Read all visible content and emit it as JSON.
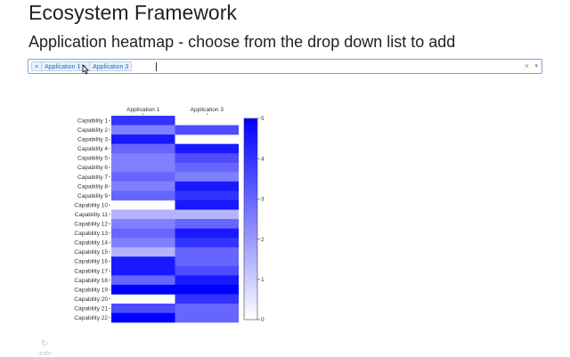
{
  "page": {
    "title": "Ecosystem Framework",
    "subtitle": "Application heatmap - choose from the drop down list to add"
  },
  "dropdown": {
    "selected": [
      {
        "remove": "×",
        "label": "Application 1"
      },
      {
        "remove": "×",
        "label": "Application 3"
      }
    ],
    "clear_icon": "×",
    "arrow_icon": "▾"
  },
  "colors": {
    "accent": "#7aa7d8",
    "scale_low": "#ffffff",
    "scale_high": "#0000ff"
  },
  "chart_data": {
    "type": "heatmap",
    "x": [
      "Application 1",
      "Application 3"
    ],
    "y": [
      "Capability 1",
      "Capability 2",
      "Capability 3",
      "Capability 4",
      "Capability 5",
      "Capability 6",
      "Capability 7",
      "Capability 8",
      "Capability 9",
      "Capability 10",
      "Capability 11",
      "Capability 12",
      "Capability 13",
      "Capability 14",
      "Capability 15",
      "Capability 16",
      "Capability 17",
      "Capability 18",
      "Capability 19",
      "Capability 20",
      "Capability 21",
      "Capability 22"
    ],
    "z": [
      [
        4,
        null
      ],
      [
        2.5,
        3.5
      ],
      [
        4.5,
        null
      ],
      [
        3,
        4.5
      ],
      [
        2.5,
        3.5
      ],
      [
        2.5,
        3
      ],
      [
        3,
        2.5
      ],
      [
        2.5,
        4.5
      ],
      [
        3,
        4
      ],
      [
        null,
        4.5
      ],
      [
        1.5,
        1.5
      ],
      [
        2.5,
        3
      ],
      [
        3,
        4.5
      ],
      [
        2.5,
        4
      ],
      [
        1.5,
        3
      ],
      [
        4.5,
        3
      ],
      [
        4.5,
        3.5
      ],
      [
        3,
        4.5
      ],
      [
        5,
        5
      ],
      [
        null,
        4
      ],
      [
        3.5,
        3
      ],
      [
        5,
        3
      ]
    ],
    "colorbar": {
      "range": [
        0,
        5
      ],
      "ticks": [
        "0",
        "1",
        "2",
        "3",
        "4",
        "5"
      ]
    }
  },
  "toolbar": {
    "undo_label": "undo",
    "undo_icon": "↻"
  }
}
